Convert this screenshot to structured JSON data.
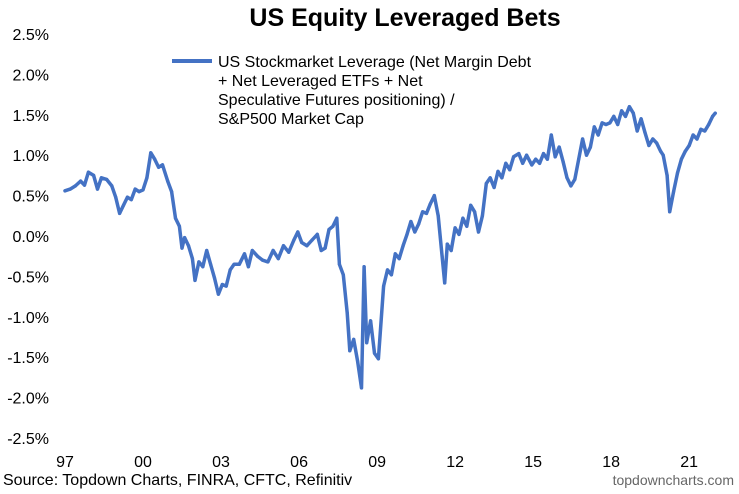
{
  "chart_data": {
    "type": "line",
    "title": "US Equity Leveraged Bets",
    "xlabel": "",
    "ylabel": "",
    "ylim": [
      -2.5,
      2.5
    ],
    "yticks": [
      "2.5%",
      "2.0%",
      "1.5%",
      "1.0%",
      "0.5%",
      "0.0%",
      "-0.5%",
      "-1.0%",
      "-1.5%",
      "-2.0%",
      "-2.5%"
    ],
    "ytick_values": [
      2.5,
      2.0,
      1.5,
      1.0,
      0.5,
      0.0,
      -0.5,
      -1.0,
      -1.5,
      -2.0,
      -2.5
    ],
    "xlim": [
      1997.0,
      2022.3
    ],
    "xticks": [
      "97",
      "00",
      "03",
      "06",
      "09",
      "12",
      "15",
      "18",
      "21"
    ],
    "xtick_values": [
      1997,
      2000,
      2003,
      2006,
      2009,
      2012,
      2015,
      2018,
      2021
    ],
    "grid": false,
    "legend_position": "top",
    "series": [
      {
        "name": "US Stockmarket Leverage (Net Margin Debt + Net Leveraged ETFs + Net Speculative Futures positioning) / S&P500 Market Cap",
        "color": "#4472C4",
        "points": [
          [
            1997.0,
            0.56
          ],
          [
            1997.2,
            0.58
          ],
          [
            1997.4,
            0.62
          ],
          [
            1997.6,
            0.68
          ],
          [
            1997.75,
            0.63
          ],
          [
            1997.9,
            0.79
          ],
          [
            1998.1,
            0.75
          ],
          [
            1998.25,
            0.58
          ],
          [
            1998.4,
            0.72
          ],
          [
            1998.6,
            0.7
          ],
          [
            1998.8,
            0.62
          ],
          [
            1998.95,
            0.48
          ],
          [
            1999.1,
            0.28
          ],
          [
            1999.25,
            0.38
          ],
          [
            1999.4,
            0.48
          ],
          [
            1999.55,
            0.45
          ],
          [
            1999.7,
            0.58
          ],
          [
            1999.85,
            0.55
          ],
          [
            2000.0,
            0.57
          ],
          [
            2000.15,
            0.72
          ],
          [
            2000.3,
            1.03
          ],
          [
            2000.45,
            0.95
          ],
          [
            2000.6,
            0.85
          ],
          [
            2000.75,
            0.88
          ],
          [
            2000.95,
            0.68
          ],
          [
            2001.1,
            0.55
          ],
          [
            2001.25,
            0.22
          ],
          [
            2001.4,
            0.12
          ],
          [
            2001.5,
            -0.15
          ],
          [
            2001.6,
            -0.02
          ],
          [
            2001.75,
            -0.12
          ],
          [
            2001.9,
            -0.28
          ],
          [
            2002.0,
            -0.55
          ],
          [
            2002.15,
            -0.32
          ],
          [
            2002.3,
            -0.38
          ],
          [
            2002.45,
            -0.18
          ],
          [
            2002.6,
            -0.35
          ],
          [
            2002.75,
            -0.52
          ],
          [
            2002.9,
            -0.72
          ],
          [
            2003.05,
            -0.6
          ],
          [
            2003.2,
            -0.62
          ],
          [
            2003.35,
            -0.42
          ],
          [
            2003.5,
            -0.35
          ],
          [
            2003.7,
            -0.35
          ],
          [
            2003.9,
            -0.22
          ],
          [
            2004.05,
            -0.38
          ],
          [
            2004.2,
            -0.18
          ],
          [
            2004.4,
            -0.25
          ],
          [
            2004.6,
            -0.3
          ],
          [
            2004.8,
            -0.32
          ],
          [
            2005.0,
            -0.18
          ],
          [
            2005.2,
            -0.28
          ],
          [
            2005.4,
            -0.12
          ],
          [
            2005.6,
            -0.2
          ],
          [
            2005.8,
            -0.05
          ],
          [
            2005.95,
            0.05
          ],
          [
            2006.1,
            -0.08
          ],
          [
            2006.3,
            -0.12
          ],
          [
            2006.5,
            -0.05
          ],
          [
            2006.7,
            0.02
          ],
          [
            2006.85,
            -0.18
          ],
          [
            2007.0,
            -0.15
          ],
          [
            2007.15,
            0.08
          ],
          [
            2007.3,
            0.12
          ],
          [
            2007.45,
            0.22
          ],
          [
            2007.55,
            -0.35
          ],
          [
            2007.7,
            -0.48
          ],
          [
            2007.85,
            -0.95
          ],
          [
            2007.95,
            -1.42
          ],
          [
            2008.1,
            -1.28
          ],
          [
            2008.25,
            -1.55
          ],
          [
            2008.4,
            -1.88
          ],
          [
            2008.5,
            -0.38
          ],
          [
            2008.6,
            -1.32
          ],
          [
            2008.75,
            -1.05
          ],
          [
            2008.9,
            -1.45
          ],
          [
            2009.05,
            -1.52
          ],
          [
            2009.25,
            -0.62
          ],
          [
            2009.4,
            -0.42
          ],
          [
            2009.55,
            -0.48
          ],
          [
            2009.7,
            -0.22
          ],
          [
            2009.85,
            -0.28
          ],
          [
            2010.0,
            -0.12
          ],
          [
            2010.15,
            0.02
          ],
          [
            2010.3,
            0.18
          ],
          [
            2010.45,
            0.05
          ],
          [
            2010.6,
            0.15
          ],
          [
            2010.75,
            0.3
          ],
          [
            2010.9,
            0.28
          ],
          [
            2011.05,
            0.4
          ],
          [
            2011.2,
            0.5
          ],
          [
            2011.35,
            0.25
          ],
          [
            2011.5,
            -0.25
          ],
          [
            2011.6,
            -0.58
          ],
          [
            2011.7,
            -0.1
          ],
          [
            2011.85,
            -0.18
          ],
          [
            2012.0,
            0.1
          ],
          [
            2012.15,
            0.02
          ],
          [
            2012.3,
            0.22
          ],
          [
            2012.45,
            0.12
          ],
          [
            2012.6,
            0.38
          ],
          [
            2012.75,
            0.3
          ],
          [
            2012.9,
            0.05
          ],
          [
            2013.05,
            0.25
          ],
          [
            2013.2,
            0.65
          ],
          [
            2013.35,
            0.72
          ],
          [
            2013.5,
            0.6
          ],
          [
            2013.65,
            0.8
          ],
          [
            2013.8,
            0.72
          ],
          [
            2013.95,
            0.9
          ],
          [
            2014.1,
            0.82
          ],
          [
            2014.25,
            0.98
          ],
          [
            2014.45,
            1.02
          ],
          [
            2014.6,
            0.9
          ],
          [
            2014.75,
            1.0
          ],
          [
            2014.95,
            0.88
          ],
          [
            2015.1,
            0.95
          ],
          [
            2015.25,
            0.9
          ],
          [
            2015.4,
            1.02
          ],
          [
            2015.55,
            0.95
          ],
          [
            2015.7,
            1.25
          ],
          [
            2015.85,
            0.98
          ],
          [
            2016.0,
            1.1
          ],
          [
            2016.15,
            0.92
          ],
          [
            2016.3,
            0.72
          ],
          [
            2016.45,
            0.62
          ],
          [
            2016.6,
            0.7
          ],
          [
            2016.75,
            0.95
          ],
          [
            2016.9,
            1.2
          ],
          [
            2017.05,
            1.0
          ],
          [
            2017.2,
            1.1
          ],
          [
            2017.35,
            1.35
          ],
          [
            2017.5,
            1.25
          ],
          [
            2017.65,
            1.4
          ],
          [
            2017.8,
            1.38
          ],
          [
            2017.95,
            1.4
          ],
          [
            2018.1,
            1.48
          ],
          [
            2018.25,
            1.38
          ],
          [
            2018.4,
            1.55
          ],
          [
            2018.55,
            1.48
          ],
          [
            2018.7,
            1.6
          ],
          [
            2018.85,
            1.52
          ],
          [
            2019.0,
            1.3
          ],
          [
            2019.15,
            1.45
          ],
          [
            2019.3,
            1.28
          ],
          [
            2019.45,
            1.12
          ],
          [
            2019.6,
            1.2
          ],
          [
            2019.75,
            1.15
          ],
          [
            2019.9,
            1.05
          ],
          [
            2020.0,
            1.0
          ],
          [
            2020.15,
            0.75
          ],
          [
            2020.25,
            0.3
          ],
          [
            2020.4,
            0.55
          ],
          [
            2020.55,
            0.78
          ],
          [
            2020.7,
            0.95
          ],
          [
            2020.85,
            1.05
          ],
          [
            2021.0,
            1.12
          ],
          [
            2021.15,
            1.25
          ],
          [
            2021.3,
            1.2
          ],
          [
            2021.45,
            1.32
          ],
          [
            2021.6,
            1.3
          ],
          [
            2021.75,
            1.38
          ],
          [
            2021.9,
            1.48
          ],
          [
            2022.0,
            1.52
          ]
        ]
      }
    ]
  },
  "footer": {
    "source": "Source: Topdown Charts, FINRA, CFTC, Refinitiv",
    "watermark": "topdowncharts.com"
  }
}
